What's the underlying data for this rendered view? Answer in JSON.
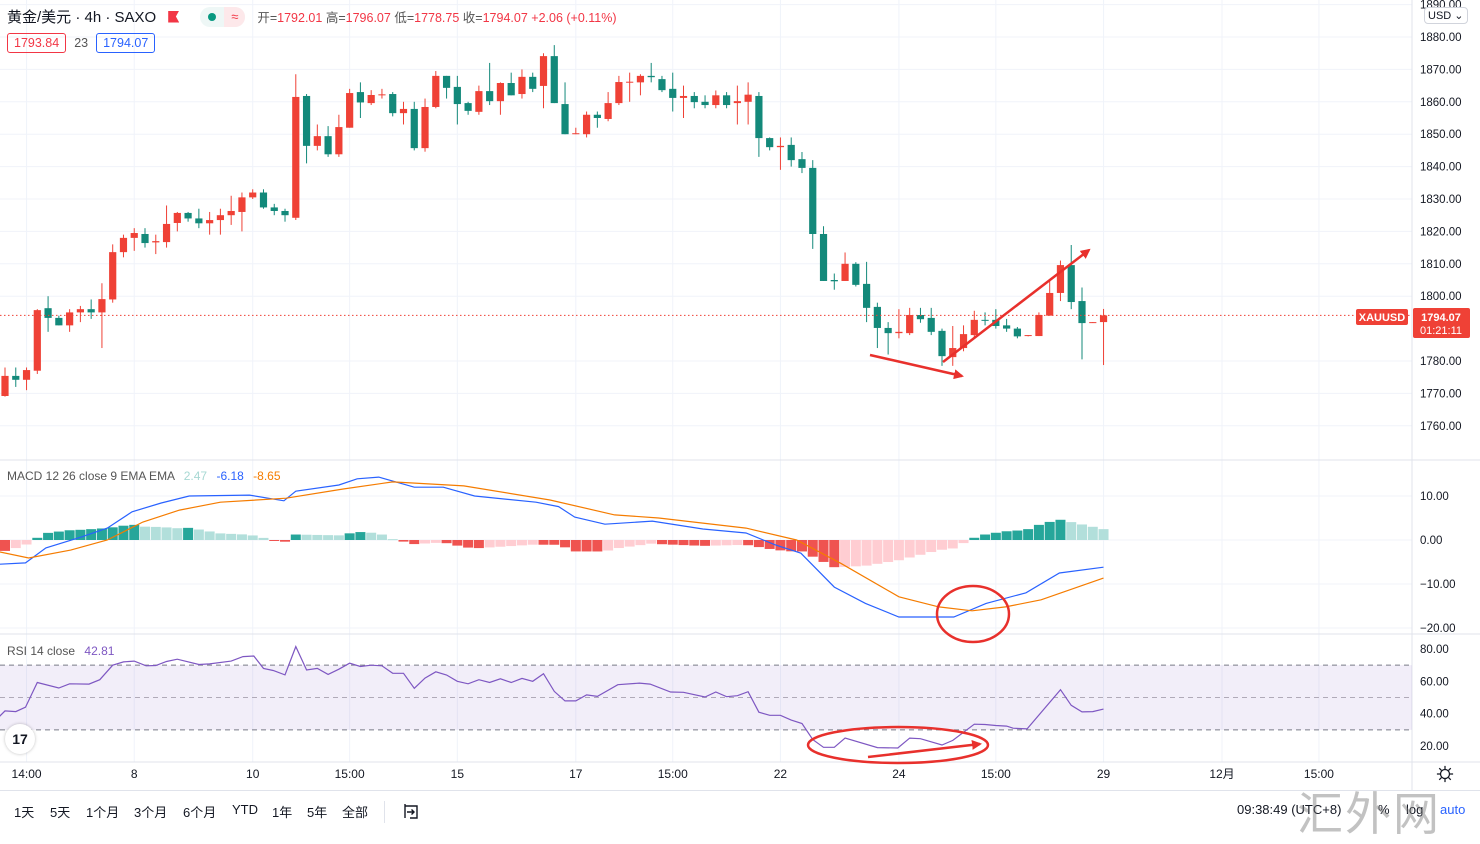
{
  "header": {
    "symbol_title": "黄金/美元 · 4h · SAXO",
    "ohlc": {
      "open_label": "开=",
      "open": "1792.01",
      "high_label": "高=",
      "high": "1796.07",
      "low_label": "低=",
      "low": "1778.75",
      "close_label": "收=",
      "close": "1794.07",
      "change": "+2.06 (+0.11%)"
    },
    "bid": "1793.84",
    "spread": "23",
    "ask": "1794.07",
    "wave_glyph": "≈"
  },
  "price_axis": {
    "currency": "USD",
    "labels": [
      "1890.00",
      "1880.00",
      "1870.00",
      "1860.00",
      "1850.00",
      "1840.00",
      "1830.00",
      "1820.00",
      "1810.00",
      "1800.00",
      "1780.00",
      "1770.00",
      "1760.00"
    ],
    "symbol_tag": "XAUUSD",
    "last_price": "1794.07",
    "countdown": "01:21:11"
  },
  "colors": {
    "up": "#ef4136",
    "down": "#13897a",
    "macd": "#2962ff",
    "signal": "#f57c00",
    "rsi": "#7e57c2",
    "annotation": "#e8302c"
  },
  "chart_data": [
    {
      "type": "candlestick",
      "title": "黄金/美元 · 4h · SAXO",
      "ylim": [
        1750,
        1890
      ],
      "ohlc_format": [
        "open",
        "high",
        "low",
        "close"
      ],
      "candles": [
        [
          1769.2,
          1778,
          1769,
          1775.4
        ],
        [
          1775.4,
          1778,
          1772,
          1774.2
        ],
        [
          1774.2,
          1778,
          1771,
          1777.2
        ],
        [
          1777,
          1796,
          1776,
          1795.7
        ],
        [
          1796.3,
          1800,
          1789,
          1793.3
        ],
        [
          1793.3,
          1794,
          1791,
          1791
        ],
        [
          1791,
          1796,
          1789,
          1795
        ],
        [
          1795,
          1797,
          1792,
          1796
        ],
        [
          1796,
          1799,
          1793,
          1795
        ],
        [
          1795,
          1804,
          1784,
          1799.1
        ],
        [
          1799,
          1816,
          1798,
          1813.6
        ],
        [
          1813.6,
          1819,
          1812,
          1818
        ],
        [
          1818,
          1821,
          1814,
          1819.5
        ],
        [
          1819.2,
          1821,
          1815,
          1816.4
        ],
        [
          1816.6,
          1819,
          1813,
          1817
        ],
        [
          1816.7,
          1828,
          1815,
          1822.3
        ],
        [
          1822.6,
          1826,
          1820,
          1825.7
        ],
        [
          1825.7,
          1826,
          1823,
          1824
        ],
        [
          1824,
          1827,
          1821,
          1822.5
        ],
        [
          1822.5,
          1826,
          1819,
          1823.5
        ],
        [
          1823.5,
          1827,
          1819,
          1825
        ],
        [
          1825,
          1831,
          1822,
          1826.3
        ],
        [
          1826,
          1832,
          1820,
          1830.5
        ],
        [
          1830.5,
          1833,
          1830,
          1832
        ],
        [
          1832,
          1833,
          1827,
          1827.4
        ],
        [
          1827.4,
          1828.5,
          1825,
          1826.3
        ],
        [
          1826.3,
          1827,
          1823,
          1825
        ],
        [
          1824.2,
          1868.5,
          1823.5,
          1861.5
        ],
        [
          1861.8,
          1862.4,
          1841,
          1846.4
        ],
        [
          1846.4,
          1853,
          1845,
          1849.4
        ],
        [
          1849.4,
          1852.5,
          1843,
          1843.8
        ],
        [
          1843.8,
          1856,
          1843,
          1852.2
        ],
        [
          1852,
          1864,
          1852,
          1862.7
        ],
        [
          1863,
          1866,
          1855,
          1859.8
        ],
        [
          1859.6,
          1863.6,
          1859,
          1862.1
        ],
        [
          1862,
          1864,
          1861,
          1862.3
        ],
        [
          1862.4,
          1863,
          1855.5,
          1856.5
        ],
        [
          1856.5,
          1860,
          1853,
          1857.8
        ],
        [
          1857.8,
          1860,
          1845,
          1845.7
        ],
        [
          1845.7,
          1861,
          1844.6,
          1858.4
        ],
        [
          1858.4,
          1869.5,
          1858,
          1868
        ],
        [
          1868,
          1868,
          1861,
          1864.3
        ],
        [
          1864.6,
          1868,
          1853,
          1859.3
        ],
        [
          1859.6,
          1860,
          1856,
          1857.2
        ],
        [
          1856.9,
          1865,
          1856,
          1863.3
        ],
        [
          1863.3,
          1872,
          1859,
          1860.2
        ],
        [
          1860.2,
          1866,
          1856,
          1865.8
        ],
        [
          1865.8,
          1869,
          1862,
          1862
        ],
        [
          1862.4,
          1870,
          1861,
          1867.7
        ],
        [
          1867.7,
          1869,
          1863,
          1864
        ],
        [
          1864.9,
          1875,
          1858,
          1874.1
        ],
        [
          1874.1,
          1877.5,
          1859.6,
          1859.6
        ],
        [
          1859.3,
          1866,
          1850,
          1850
        ],
        [
          1850,
          1852,
          1850,
          1850.3
        ],
        [
          1850,
          1857,
          1849,
          1856
        ],
        [
          1856,
          1857,
          1852,
          1855
        ],
        [
          1854.7,
          1863,
          1854,
          1859.6
        ],
        [
          1859.6,
          1868,
          1859,
          1866.1
        ],
        [
          1866,
          1869,
          1860,
          1866.2
        ],
        [
          1866,
          1868.5,
          1862,
          1868
        ],
        [
          1868,
          1872,
          1866,
          1867.6
        ],
        [
          1867,
          1868,
          1863,
          1863.6
        ],
        [
          1864,
          1869,
          1857,
          1861.2
        ],
        [
          1861.2,
          1865,
          1855,
          1861.8
        ],
        [
          1861.8,
          1863,
          1858,
          1859.9
        ],
        [
          1860,
          1862,
          1858,
          1859
        ],
        [
          1859,
          1863.5,
          1858,
          1862
        ],
        [
          1862,
          1863,
          1858,
          1859
        ],
        [
          1859.6,
          1865,
          1853,
          1860.2
        ],
        [
          1860,
          1866,
          1853,
          1862.2
        ],
        [
          1861.8,
          1863,
          1843,
          1848.8
        ],
        [
          1848.8,
          1849,
          1845,
          1846
        ],
        [
          1846,
          1849,
          1839,
          1846.4
        ],
        [
          1846.7,
          1849,
          1840,
          1842
        ],
        [
          1842.3,
          1844.5,
          1838,
          1839.6
        ],
        [
          1839.6,
          1842,
          1814.6,
          1819.2
        ],
        [
          1819.2,
          1821.6,
          1804.7,
          1804.7
        ],
        [
          1805,
          1807,
          1802,
          1804.6
        ],
        [
          1804.7,
          1813.5,
          1804.7,
          1810
        ],
        [
          1810,
          1810.5,
          1803,
          1803.5
        ],
        [
          1803.8,
          1810.6,
          1792,
          1796.4
        ],
        [
          1796.7,
          1798,
          1784,
          1790.2
        ],
        [
          1790.2,
          1792,
          1782,
          1788.6
        ],
        [
          1788.6,
          1796,
          1787,
          1789
        ],
        [
          1788.6,
          1796.4,
          1788,
          1794.2
        ],
        [
          1794.2,
          1796.4,
          1791.8,
          1792.9
        ],
        [
          1793.3,
          1796.4,
          1788,
          1789
        ],
        [
          1789.3,
          1790,
          1778.5,
          1781.5
        ],
        [
          1781.2,
          1790.8,
          1778.5,
          1784
        ],
        [
          1784,
          1791,
          1783,
          1788.3
        ],
        [
          1788,
          1795.5,
          1787,
          1792.7
        ],
        [
          1792.7,
          1795,
          1791,
          1792.5
        ],
        [
          1792.7,
          1796,
          1790,
          1790.8
        ],
        [
          1791,
          1793,
          1789,
          1790
        ],
        [
          1790,
          1790.5,
          1787,
          1787.6
        ],
        [
          1787.7,
          1788,
          1787.6,
          1788
        ],
        [
          1787.7,
          1795,
          1787.7,
          1794.2
        ],
        [
          1794,
          1805.2,
          1794,
          1801
        ],
        [
          1801,
          1811,
          1798.5,
          1809.6
        ],
        [
          1809.6,
          1815.8,
          1796,
          1798.2
        ],
        [
          1798.5,
          1802.7,
          1780.5,
          1791.7
        ],
        [
          1791.8,
          1792,
          1791.8,
          1792
        ],
        [
          1792.01,
          1796.07,
          1778.75,
          1794.07
        ]
      ],
      "last_price": 1794.07,
      "x_ticks": [
        {
          "index": 2,
          "label": "14:00"
        },
        {
          "index": 12,
          "label": "8"
        },
        {
          "index": 23,
          "label": "10"
        },
        {
          "index": 32,
          "label": "15:00"
        },
        {
          "index": 42,
          "label": "15"
        },
        {
          "index": 53,
          "label": "17"
        },
        {
          "index": 62,
          "label": "15:00"
        },
        {
          "index": 72,
          "label": "22"
        },
        {
          "index": 83,
          "label": "24"
        },
        {
          "index": 92,
          "label": "15:00"
        },
        {
          "index": 102,
          "label": "29"
        },
        {
          "index": 113,
          "label": "12月"
        },
        {
          "index": 122,
          "label": "15:00"
        }
      ],
      "grid": true
    },
    {
      "type": "line",
      "title": "MACD 12 26 close 9 EMA EMA",
      "legend_values": {
        "histogram": "2.47",
        "macd": "-6.18",
        "signal": "-8.65"
      },
      "ylim": [
        -22,
        15
      ],
      "y_ticks": [
        "10.00",
        "0.00",
        "−10.00",
        "−20.00"
      ],
      "y_tick_values": [
        10,
        0,
        -10,
        -20
      ],
      "macd": [
        [
          -0.5,
          -5.5
        ],
        [
          1.9,
          -5.2
        ],
        [
          3.8,
          -1.8
        ],
        [
          7.1,
          0.7
        ],
        [
          9.5,
          2.7
        ],
        [
          11.8,
          6.4
        ],
        [
          14.5,
          8.4
        ],
        [
          17.1,
          10
        ],
        [
          22.7,
          10.2
        ],
        [
          25.9,
          8.9
        ],
        [
          27,
          11.1
        ],
        [
          31,
          12.5
        ],
        [
          32.7,
          13.9
        ],
        [
          34.7,
          14.3
        ],
        [
          38,
          12
        ],
        [
          40.7,
          12
        ],
        [
          43.6,
          10
        ],
        [
          49.3,
          8.6
        ],
        [
          51.4,
          7.6
        ],
        [
          52.9,
          5.2
        ],
        [
          55.7,
          3.6
        ],
        [
          60.1,
          4.3
        ],
        [
          64.8,
          2.5
        ],
        [
          68.8,
          1.6
        ],
        [
          71.5,
          -1.1
        ],
        [
          73.9,
          -3
        ],
        [
          77,
          -10.7
        ],
        [
          79.9,
          -14.4
        ],
        [
          83,
          -17.5
        ],
        [
          86.4,
          -17.5
        ],
        [
          88.1,
          -17.5
        ],
        [
          91.1,
          -14.4
        ],
        [
          94.8,
          -12
        ],
        [
          97.9,
          -7.5
        ],
        [
          102,
          -6.18
        ]
      ],
      "signal": [
        [
          -0.5,
          -2.7
        ],
        [
          2.2,
          -4.1
        ],
        [
          6.1,
          -2.3
        ],
        [
          9.5,
          0
        ],
        [
          12.8,
          4.1
        ],
        [
          16.2,
          6.8
        ],
        [
          20,
          8.6
        ],
        [
          26.1,
          9.5
        ],
        [
          31.4,
          11.6
        ],
        [
          36,
          13.2
        ],
        [
          42.6,
          12.3
        ],
        [
          50.6,
          9.1
        ],
        [
          56.6,
          5.7
        ],
        [
          60.7,
          5
        ],
        [
          68.8,
          2.7
        ],
        [
          73.5,
          0
        ],
        [
          77.6,
          -5.3
        ],
        [
          83,
          -12.9
        ],
        [
          86.7,
          -15.2
        ],
        [
          89.8,
          -16.1
        ],
        [
          92.9,
          -15.2
        ],
        [
          96.2,
          -13.6
        ],
        [
          102,
          -8.65
        ]
      ],
      "histogram": "macd minus signal, one bar per candle"
    },
    {
      "type": "line",
      "title": "RSI 14 close",
      "legend_value": "42.81",
      "ylim": [
        10,
        85
      ],
      "y_ticks": [
        "80.00",
        "60.00",
        "40.00",
        "20.00"
      ],
      "y_tick_values": [
        80,
        60,
        40,
        20
      ],
      "bands": [
        70,
        50,
        30
      ],
      "rsi": [
        [
          -0.5,
          38.4
        ],
        [
          0,
          41.7
        ],
        [
          1,
          41.3
        ],
        [
          1.9,
          44
        ],
        [
          3,
          59.3
        ],
        [
          5,
          55.9
        ],
        [
          6,
          58.5
        ],
        [
          7.8,
          58.3
        ],
        [
          8.8,
          61
        ],
        [
          10,
          70
        ],
        [
          11,
          72
        ],
        [
          12,
          72.5
        ],
        [
          13.1,
          69.6
        ],
        [
          14,
          69.8
        ],
        [
          15,
          72.3
        ],
        [
          16,
          73.7
        ],
        [
          18,
          70.4
        ],
        [
          19,
          70.8
        ],
        [
          21,
          72.5
        ],
        [
          22.1,
          75.3
        ],
        [
          23.1,
          75.7
        ],
        [
          24,
          68
        ],
        [
          24.9,
          66.7
        ],
        [
          26,
          64
        ],
        [
          27,
          81.5
        ],
        [
          28,
          67
        ],
        [
          29,
          68
        ],
        [
          30,
          64.3
        ],
        [
          31,
          67.5
        ],
        [
          32,
          71.2
        ],
        [
          33,
          69.2
        ],
        [
          34,
          70
        ],
        [
          35,
          69.6
        ],
        [
          36,
          65
        ],
        [
          37,
          65
        ],
        [
          38,
          55.7
        ],
        [
          39,
          62
        ],
        [
          40,
          65.9
        ],
        [
          41,
          63.9
        ],
        [
          42,
          60
        ],
        [
          43,
          58.5
        ],
        [
          44,
          61
        ],
        [
          45,
          59.3
        ],
        [
          46,
          61.6
        ],
        [
          47,
          59.3
        ],
        [
          48,
          61.8
        ],
        [
          49,
          60
        ],
        [
          50,
          64.7
        ],
        [
          51,
          53.8
        ],
        [
          52,
          47.9
        ],
        [
          53,
          47.9
        ],
        [
          54,
          51.6
        ],
        [
          55,
          50.7
        ],
        [
          56.9,
          57.9
        ],
        [
          58.9,
          58.9
        ],
        [
          59.9,
          58.3
        ],
        [
          61.8,
          53.4
        ],
        [
          63,
          53.2
        ],
        [
          65,
          50.3
        ],
        [
          66,
          53.4
        ],
        [
          67,
          50.5
        ],
        [
          68,
          51.1
        ],
        [
          69,
          53.6
        ],
        [
          70,
          40.9
        ],
        [
          71,
          39
        ],
        [
          72,
          39
        ],
        [
          73,
          36
        ],
        [
          74,
          33.9
        ],
        [
          75,
          24
        ],
        [
          76,
          19.2
        ],
        [
          77,
          19.2
        ],
        [
          78,
          24.9
        ],
        [
          81,
          19
        ],
        [
          82.9,
          18.8
        ],
        [
          84,
          24.9
        ],
        [
          85,
          24.5
        ],
        [
          87,
          20.6
        ],
        [
          88,
          23.5
        ],
        [
          90,
          33.5
        ],
        [
          91,
          33.3
        ],
        [
          92,
          32.7
        ],
        [
          93,
          32.3
        ],
        [
          93.6,
          31
        ],
        [
          94.9,
          30.6
        ],
        [
          98,
          54.8
        ],
        [
          99,
          45.2
        ],
        [
          100,
          41.1
        ],
        [
          101,
          41.3
        ],
        [
          102,
          42.81
        ]
      ]
    }
  ],
  "toolbar": {
    "ranges": [
      "1天",
      "5天",
      "1个月",
      "3个月",
      "6个月",
      "YTD",
      "1年",
      "5年",
      "全部"
    ],
    "clock": "09:38:49 (UTC+8)",
    "percent": "%",
    "log": "log",
    "auto": "auto"
  },
  "logo_text": "17",
  "watermark": "汇外网"
}
